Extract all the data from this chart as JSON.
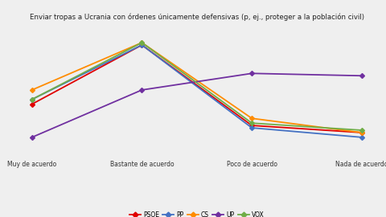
{
  "title": "Enviar tropas a Ucrania con órdenes únicamente defensivas (p, ej., proteger a la población civil)",
  "x_labels": [
    "Muy de acuerdo",
    "Bastante de acuerdo",
    "Poco de acuerdo",
    "Nada de acuerdo"
  ],
  "parties": [
    "PSOE",
    "PP",
    "CS",
    "UP",
    "VOX"
  ],
  "colors": [
    "#e00000",
    "#4472c4",
    "#ff8c00",
    "#7030a0",
    "#70ad47"
  ],
  "data": {
    "PSOE": [
      22,
      47,
      13,
      10
    ],
    "PP": [
      24,
      47,
      12,
      8
    ],
    "CS": [
      28,
      48,
      16,
      10
    ],
    "UP": [
      8,
      28,
      35,
      34
    ],
    "VOX": [
      24,
      48,
      14,
      11
    ]
  },
  "ylim": [
    0,
    55
  ],
  "figsize": [
    4.8,
    2.7
  ],
  "dpi": 100,
  "bg_color": "#efefef",
  "grid_color": "#ffffff",
  "marker": "D",
  "marker_size": 3,
  "line_width": 1.3,
  "legend_entries": [
    "PSOE",
    "PP",
    "CS",
    "UP",
    "VOX"
  ]
}
